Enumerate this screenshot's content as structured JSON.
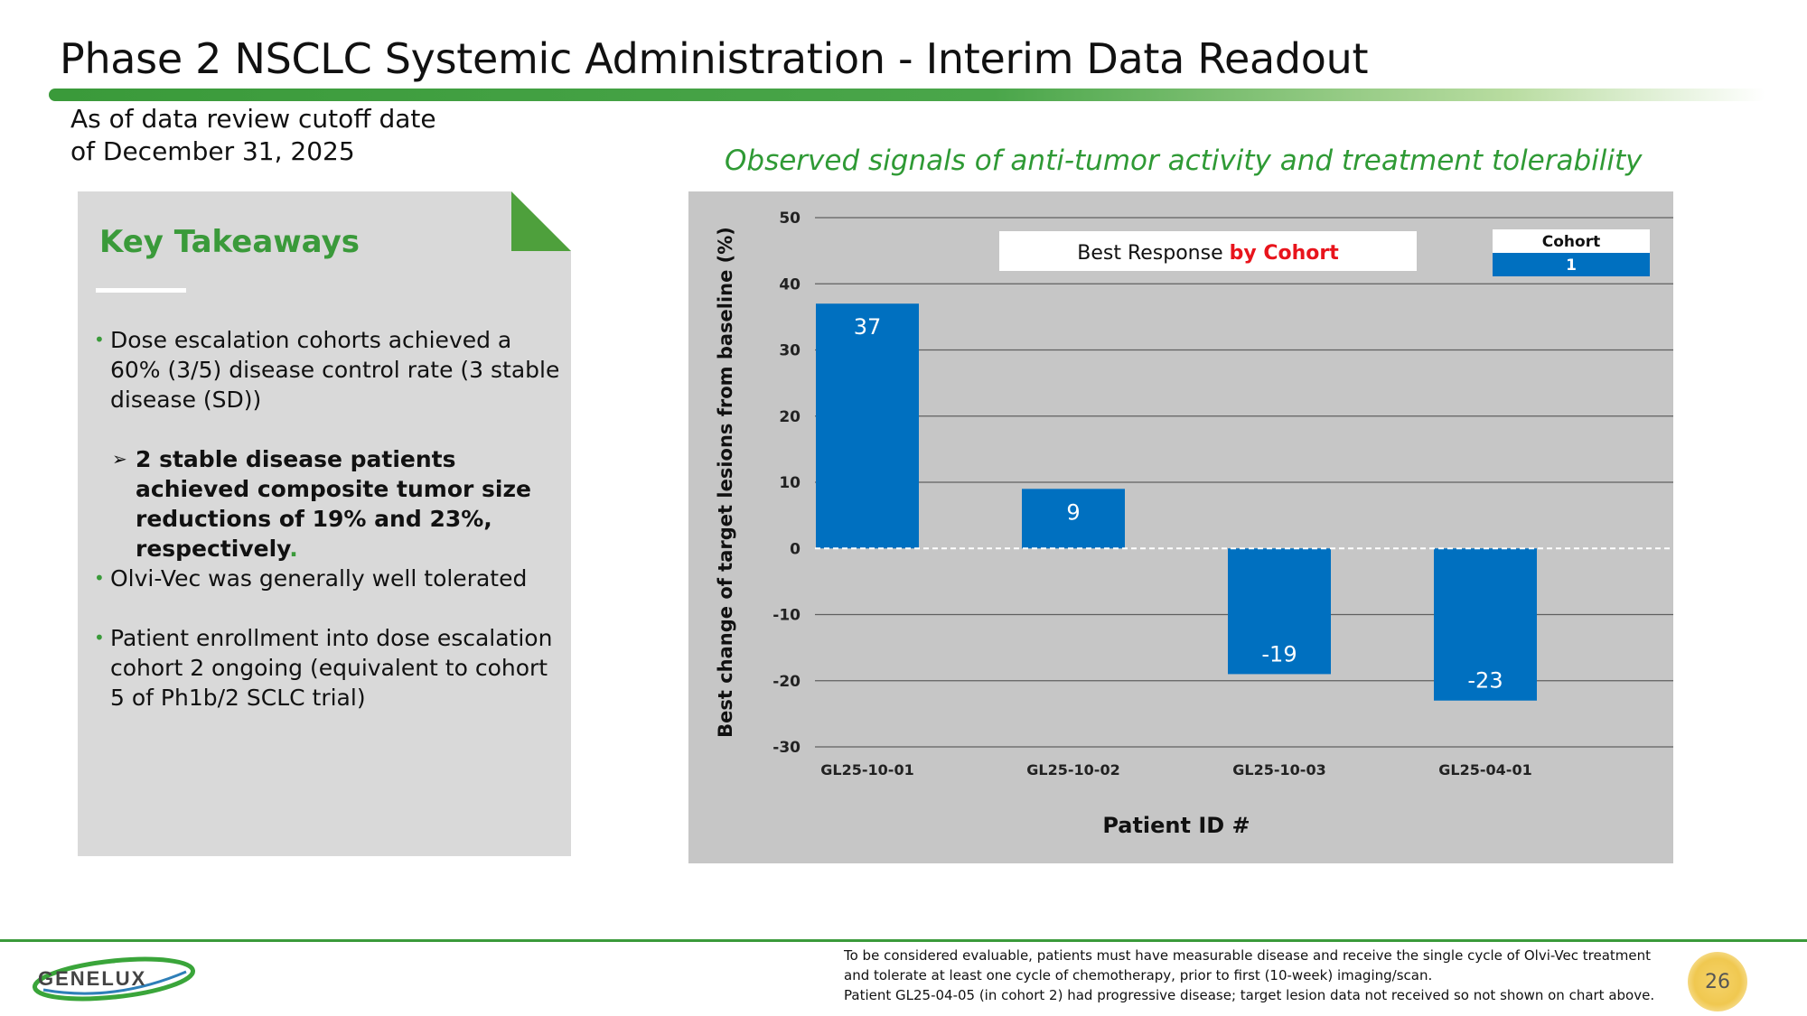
{
  "header": {
    "title": "Phase 2 NSCLC Systemic Administration - Interim Data Readout",
    "cutoff_line1": "As of data review cutoff date",
    "cutoff_line2": "of December 31, 2025"
  },
  "chart_subtitle": "Observed signals of anti-tumor activity and treatment tolerability",
  "takeaways": {
    "title": "Key Takeaways",
    "bullet1": "Dose escalation cohorts achieved a 60% (3/5) disease control rate (3 stable disease (SD))",
    "sub_bullet": "2 stable disease patients achieved composite tumor size reductions of 19% and 23%, respectively",
    "sub_bullet_period": ".",
    "bullet2": "Olvi-Vec was generally well tolerated",
    "bullet3": "Patient enrollment into dose escalation cohort 2 ongoing (equivalent to cohort 5 of Ph1b/2 SCLC trial)"
  },
  "chart_data": {
    "type": "bar",
    "title_part1": "Best Response ",
    "title_part2": "by Cohort",
    "xlabel": "Patient ID #",
    "ylabel": "Best change of target lesions from baseline (%)",
    "ylim": [
      -30,
      50
    ],
    "yticks": [
      50,
      40,
      30,
      20,
      10,
      0,
      -10,
      -20,
      -30
    ],
    "categories": [
      "GL25-10-01",
      "GL25-10-02",
      "GL25-10-03",
      "GL25-04-01"
    ],
    "values": [
      37,
      9,
      -19,
      -23
    ],
    "legend": {
      "title": "Cohort",
      "entries": [
        "1"
      ]
    },
    "colors": {
      "bar": "#0070c0",
      "accent": "#e8141c",
      "background": "#c6c6c6"
    }
  },
  "footer": {
    "note_line1": "To be considered evaluable, patients must have measurable disease and receive the single cycle of Olvi-Vec treatment",
    "note_line2": "and tolerate at least one cycle of chemotherapy, prior to first (10-week) imaging/scan.",
    "note_line3": "Patient GL25-04-05  (in cohort 2) had progressive disease; target lesion data not received so not shown on chart above.",
    "logo_text": "GENELUX",
    "page_number": "26"
  }
}
